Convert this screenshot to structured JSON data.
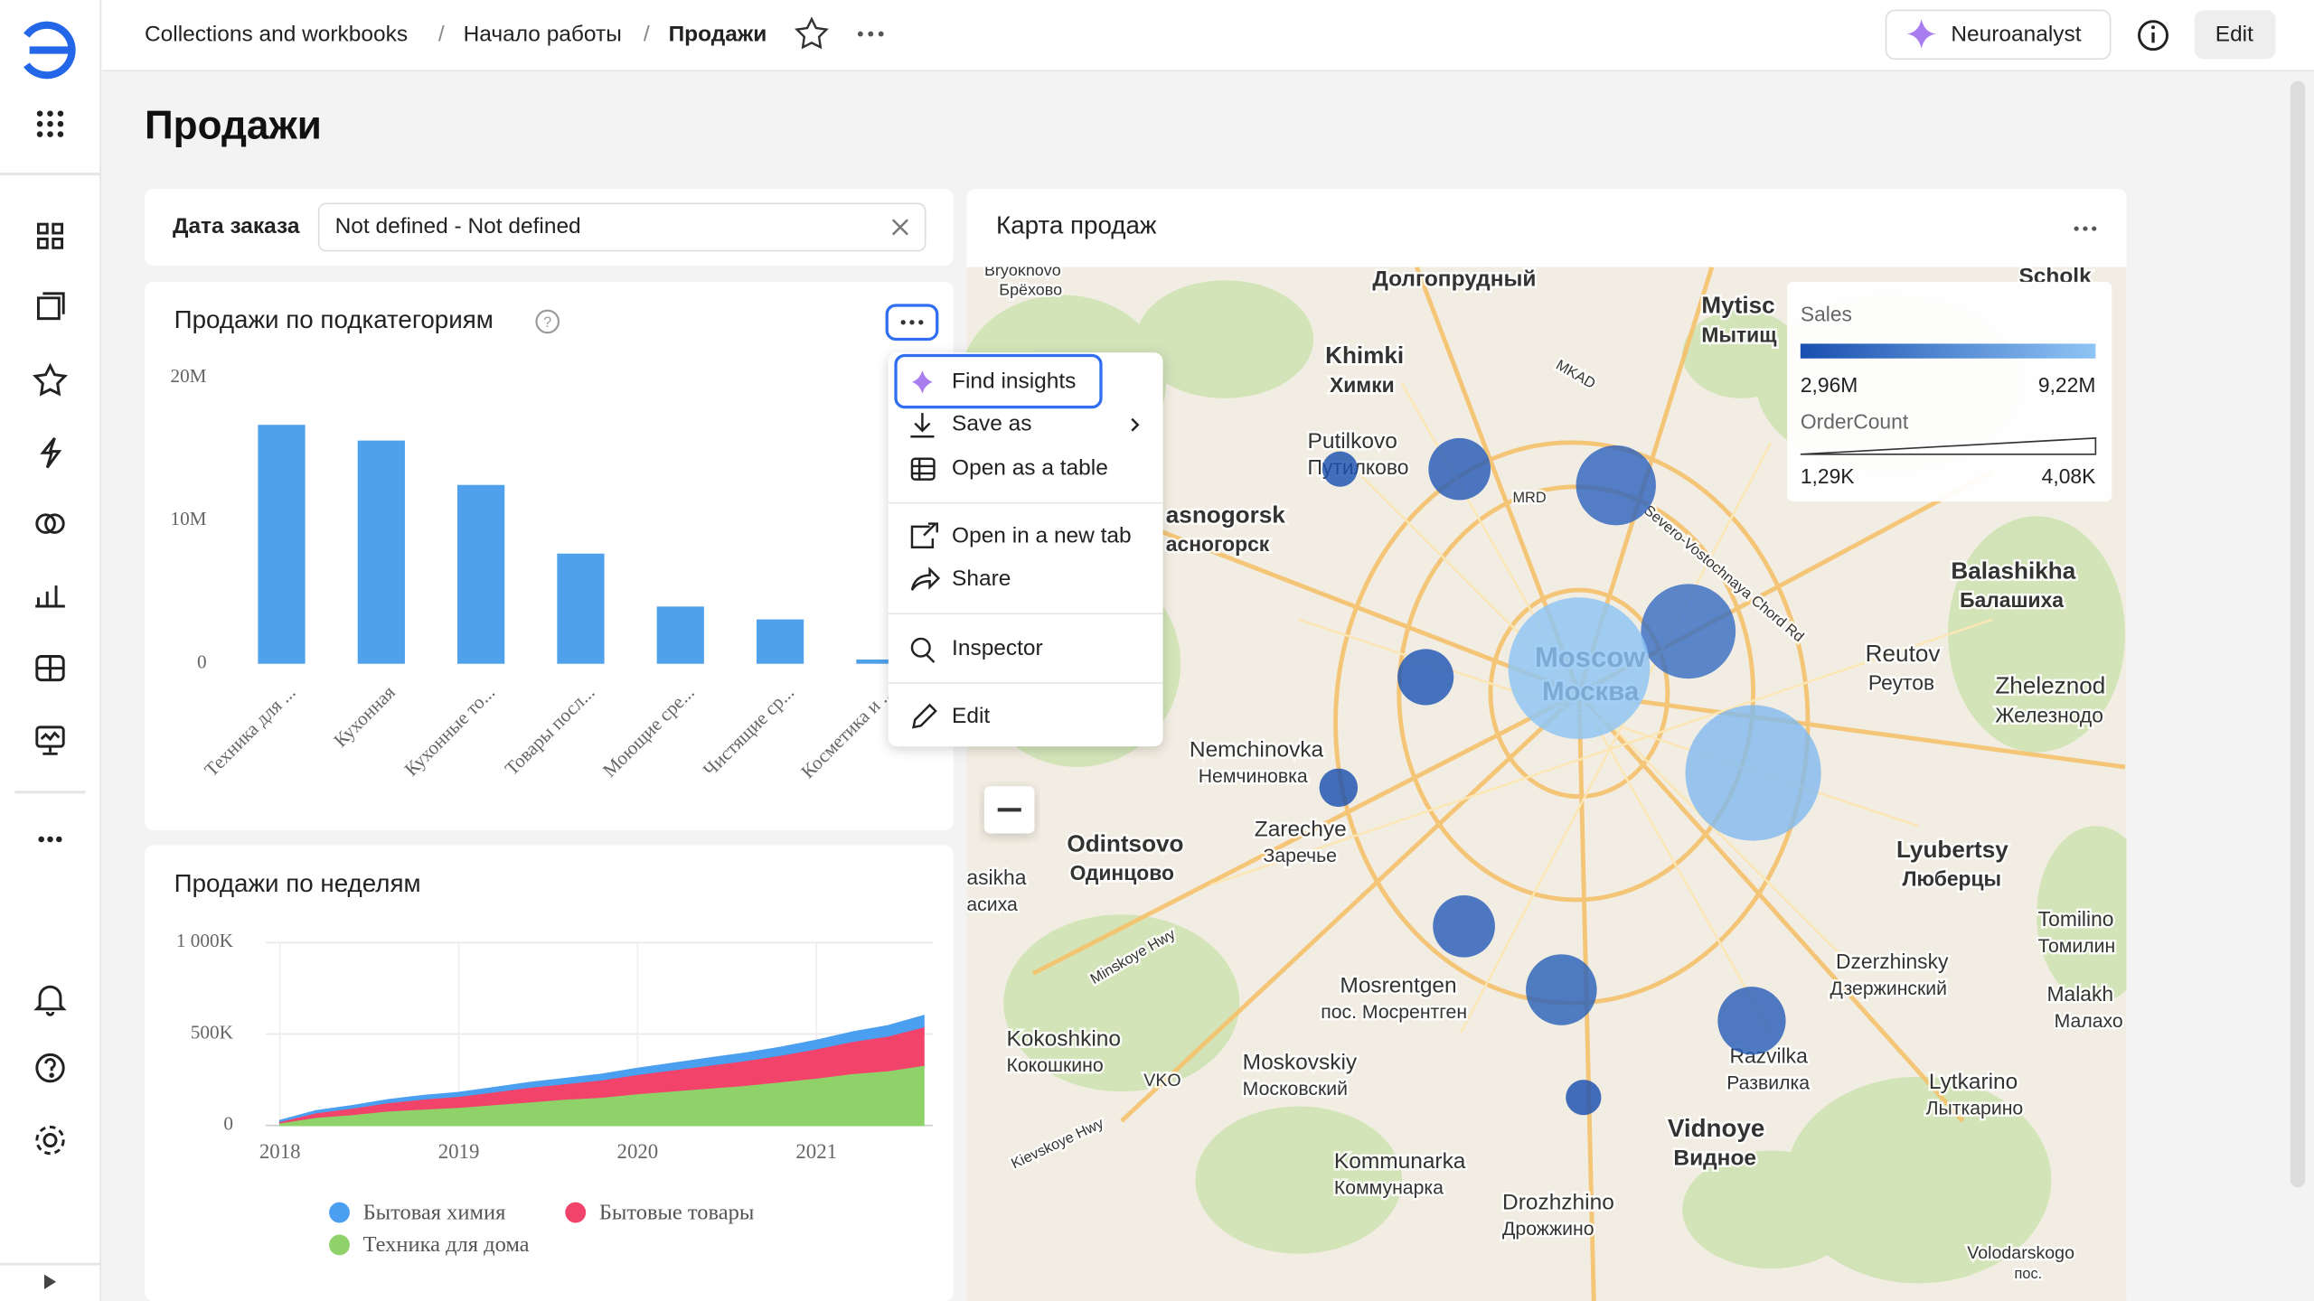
{
  "topbar": {
    "breadcrumbs": [
      "Collections and workbooks",
      "Начало работы",
      "Продажи"
    ],
    "separator": "/",
    "neuroanalyst": "Neuroanalyst",
    "edit": "Edit"
  },
  "dashboard": {
    "title": "Продажи",
    "filter": {
      "label": "Дата заказа",
      "value": "Not defined - Not defined"
    }
  },
  "chart_data": [
    {
      "type": "bar",
      "title": "Продажи по подкатегориям",
      "categories": [
        "Техника для ...",
        "Кухонная",
        "Кухонные то...",
        "Товары посл...",
        "Моющие сре...",
        "Чистящие ср...",
        "Косметика и ..."
      ],
      "values": [
        16700000,
        15600000,
        12500000,
        7700000,
        4000000,
        3100000,
        300000
      ],
      "color": "#4fa1ec",
      "ylim": [
        0,
        20000000
      ],
      "yticks": [
        0,
        {
          "value": 10000000,
          "label": "10M"
        },
        {
          "value": 20000000,
          "label": "20M"
        }
      ],
      "grid": false
    },
    {
      "type": "area",
      "stacked": true,
      "title": "Продажи по неделям",
      "x": [
        2018,
        2018.2,
        2018.4,
        2018.6,
        2018.8,
        2019,
        2019.2,
        2019.4,
        2019.6,
        2019.8,
        2020,
        2020.2,
        2020.4,
        2020.6,
        2020.8,
        2021,
        2021.2,
        2021.4,
        2021.6
      ],
      "series": [
        {
          "name": "Бытовая химия",
          "color": "#4a9ff0",
          "values": [
            4000,
            10000,
            12000,
            15000,
            18000,
            20000,
            22000,
            25000,
            27000,
            30000,
            32000,
            35000,
            38000,
            40000,
            42000,
            45000,
            50000,
            55000,
            60000
          ]
        },
        {
          "name": "Бытовые товары",
          "color": "#f2436b",
          "values": [
            8000,
            25000,
            35000,
            45000,
            55000,
            60000,
            70000,
            80000,
            85000,
            95000,
            105000,
            115000,
            125000,
            135000,
            145000,
            160000,
            175000,
            190000,
            210000
          ]
        },
        {
          "name": "Техника для дома",
          "color": "#8fd26a",
          "values": [
            15000,
            45000,
            60000,
            80000,
            90000,
            100000,
            115000,
            130000,
            145000,
            155000,
            175000,
            190000,
            205000,
            220000,
            240000,
            260000,
            285000,
            300000,
            330000
          ]
        }
      ],
      "xlim": [
        2017.92,
        2021.65
      ],
      "xticks": [
        2018,
        2019,
        2020,
        2021
      ],
      "ylim": [
        0,
        1000000
      ],
      "yticks": [
        0,
        {
          "value": 500000,
          "label": "500K"
        },
        {
          "value": 1000000,
          "label": "1 000K"
        }
      ],
      "grid": true
    }
  ],
  "menu": {
    "items": [
      "Find insights",
      "Save as",
      "Open as a table",
      "Open in a new tab",
      "Share",
      "Inspector",
      "Edit"
    ]
  },
  "map": {
    "title": "Карта продаж",
    "legend": {
      "sales_title": "Sales",
      "sales_min": {
        "value": 2960000,
        "label": "2,96M"
      },
      "sales_max": {
        "value": 9220000,
        "label": "9,22M"
      },
      "orders_title": "OrderCount",
      "orders_min": {
        "value": 1290,
        "label": "1,29K"
      },
      "orders_max": {
        "value": 4080,
        "label": "4,08K"
      }
    },
    "labels": [
      "Bryokhovo",
      "Брёхово",
      "Долгопрудный",
      "Mytisc",
      "Мытищ",
      "Scholk",
      "Khimki",
      "Химки",
      "Putilkovo",
      "Путилково",
      "asnogorsk",
      "асногорск",
      "Balashikha",
      "Балашиха",
      "Reutov",
      "Реутов",
      "Zheleznod",
      "Железнодо",
      "Moscow",
      "Москва",
      "Nemchinovka",
      "Немчиновка",
      "Zarechye",
      "Заречье",
      "Odintsovo",
      "Одинцово",
      "asikha",
      "асиха",
      "Lyubertsy",
      "Люберцы",
      "Tomilino",
      "Томилин",
      "Dzerzhinsky",
      "Дзержинский",
      "Malakh",
      "Малахо",
      "Mosrentgen",
      "пос. Мосрентген",
      "Kokoshkino",
      "Кокошкино",
      "VKO",
      "Moskovskiy",
      "Московский",
      "Razvilka",
      "Развилка",
      "Lytkarino",
      "Лыткарино",
      "Vidnoye",
      "Видное",
      "Kommunarka",
      "Коммунарка",
      "Drozhzhino",
      "Дрожжино",
      "Volodarskogo",
      "пос.",
      "MKAD",
      "MRD",
      "Minskoye Hwy",
      "Kievskoye Hwy",
      "Severo-Vostochnaya Chord Rd"
    ],
    "bubbles": [
      {
        "sales": 3000000,
        "orders": 1430
      },
      {
        "sales": 3600000,
        "orders": 2060
      },
      {
        "sales": 4100000,
        "orders": 2480
      },
      {
        "sales": 4600000,
        "orders": 2830
      },
      {
        "sales": 9200000,
        "orders": 3940
      },
      {
        "sales": 3300000,
        "orders": 1920
      },
      {
        "sales": 8600000,
        "orders": 3800
      },
      {
        "sales": 3000000,
        "orders": 1500
      },
      {
        "sales": 3700000,
        "orders": 2060
      },
      {
        "sales": 3900000,
        "orders": 2270
      },
      {
        "sales": 3800000,
        "orders": 2200
      },
      {
        "sales": 2960000,
        "orders": 1430
      }
    ]
  }
}
